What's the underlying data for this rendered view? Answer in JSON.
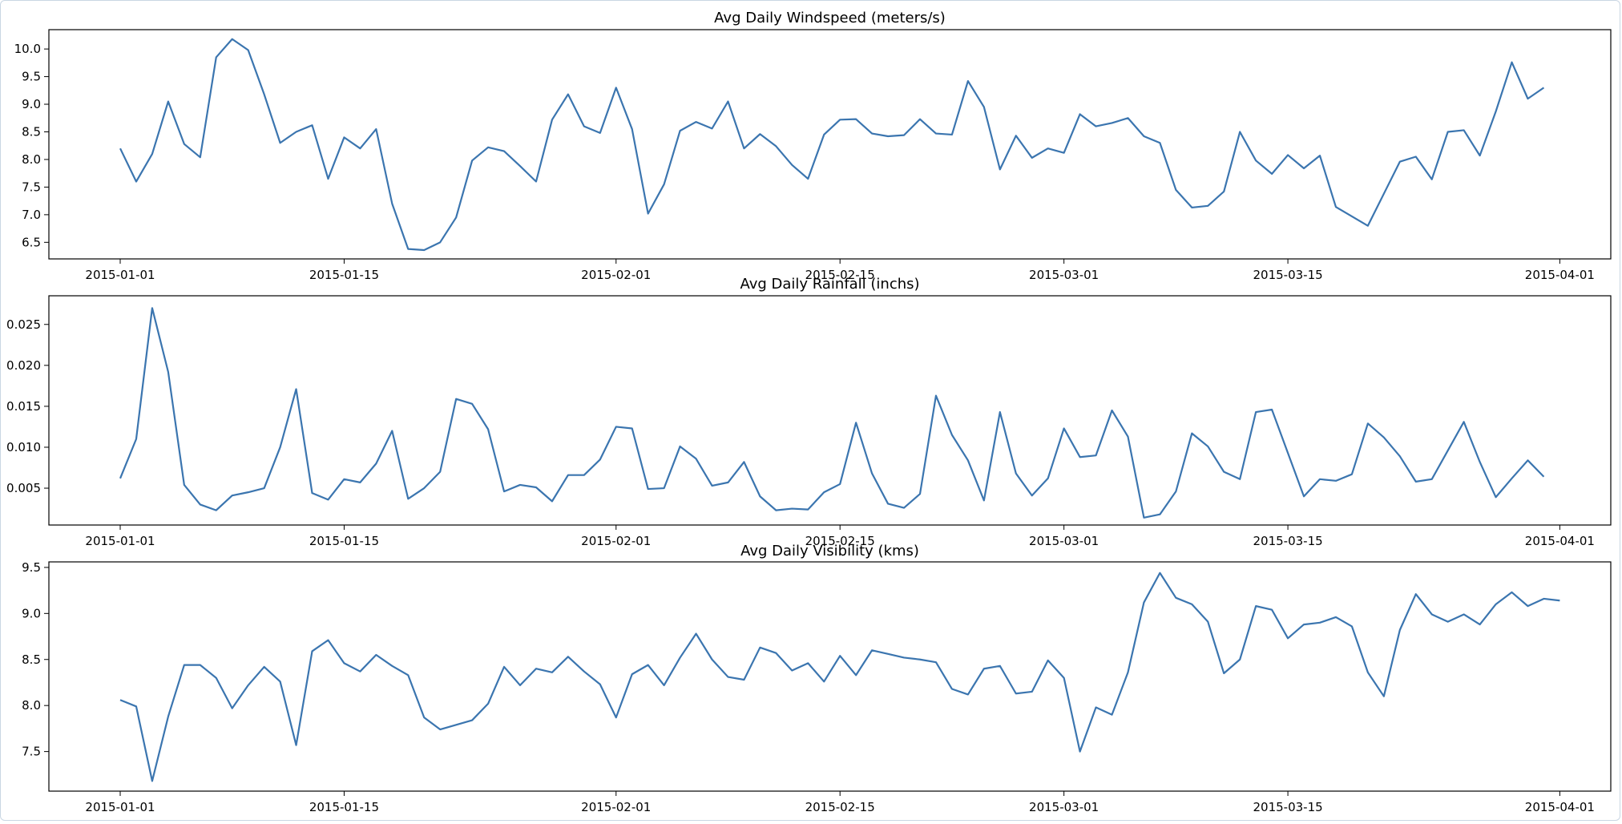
{
  "chart_data": [
    {
      "type": "line",
      "title": "Avg Daily Windspeed (meters/s)",
      "xlabel": "",
      "ylabel": "",
      "x_start": "2015-01-01",
      "x_ticks": [
        "2015-01-01",
        "2015-01-15",
        "2015-02-01",
        "2015-02-15",
        "2015-03-01",
        "2015-03-15",
        "2015-04-01"
      ],
      "y_ticks": [
        6.5,
        7.0,
        7.5,
        8.0,
        8.5,
        9.0,
        9.5,
        10.0
      ],
      "ylim": [
        6.2,
        10.35
      ],
      "series_color": "#3b75af",
      "values": [
        8.2,
        7.6,
        8.1,
        9.05,
        8.28,
        8.04,
        9.85,
        10.18,
        9.98,
        9.18,
        8.3,
        8.5,
        8.62,
        7.65,
        8.4,
        8.2,
        8.55,
        7.2,
        6.38,
        6.36,
        6.5,
        6.95,
        7.98,
        8.22,
        8.15,
        7.88,
        7.6,
        8.72,
        9.18,
        8.6,
        8.48,
        9.3,
        8.55,
        7.02,
        7.55,
        8.52,
        8.68,
        8.56,
        9.05,
        8.2,
        8.46,
        8.24,
        7.9,
        7.65,
        8.45,
        8.72,
        8.73,
        8.47,
        8.42,
        8.44,
        8.73,
        8.47,
        8.45,
        9.42,
        8.95,
        7.82,
        8.43,
        8.03,
        8.2,
        8.12,
        8.82,
        8.6,
        8.66,
        8.75,
        8.42,
        8.3,
        7.45,
        7.13,
        7.16,
        7.42,
        8.5,
        7.98,
        7.74,
        8.08,
        7.84,
        8.07,
        7.14,
        6.97,
        6.8,
        7.38,
        7.96,
        8.05,
        7.64,
        8.5,
        8.53,
        8.07,
        8.87,
        9.76,
        9.1,
        9.3
      ]
    },
    {
      "type": "line",
      "title": "Avg Daily Rainfall (inchs)",
      "xlabel": "",
      "ylabel": "",
      "x_start": "2015-01-01",
      "x_ticks": [
        "2015-01-01",
        "2015-01-15",
        "2015-02-01",
        "2015-02-15",
        "2015-03-01",
        "2015-03-15",
        "2015-04-01"
      ],
      "y_ticks": [
        0.005,
        0.01,
        0.015,
        0.02,
        0.025
      ],
      "ylim": [
        0.0005,
        0.0285
      ],
      "series_color": "#3b75af",
      "values": [
        0.0062,
        0.011,
        0.027,
        0.0192,
        0.0054,
        0.003,
        0.0023,
        0.0041,
        0.0045,
        0.005,
        0.01,
        0.0171,
        0.0044,
        0.0036,
        0.0061,
        0.0057,
        0.008,
        0.012,
        0.0037,
        0.005,
        0.007,
        0.0159,
        0.0153,
        0.0122,
        0.0046,
        0.0054,
        0.0051,
        0.0034,
        0.0066,
        0.0066,
        0.0085,
        0.0125,
        0.0123,
        0.0049,
        0.005,
        0.0101,
        0.0086,
        0.0053,
        0.0057,
        0.0082,
        0.004,
        0.0023,
        0.0025,
        0.0024,
        0.0045,
        0.0055,
        0.013,
        0.0068,
        0.0031,
        0.0026,
        0.0043,
        0.0163,
        0.0115,
        0.0084,
        0.0035,
        0.0143,
        0.0068,
        0.0041,
        0.0062,
        0.0123,
        0.0088,
        0.009,
        0.0145,
        0.0113,
        0.0014,
        0.0018,
        0.0046,
        0.0117,
        0.0101,
        0.007,
        0.0061,
        0.0143,
        0.0146,
        0.0093,
        0.004,
        0.0061,
        0.0059,
        0.0067,
        0.0129,
        0.0112,
        0.0089,
        0.0058,
        0.0061,
        0.0096,
        0.0131,
        0.0082,
        0.0039,
        0.0062,
        0.0084,
        0.0064
      ]
    },
    {
      "type": "line",
      "title": "Avg Daily Visibility (kms)",
      "xlabel": "",
      "ylabel": "",
      "x_start": "2015-01-01",
      "x_ticks": [
        "2015-01-01",
        "2015-01-15",
        "2015-02-01",
        "2015-02-15",
        "2015-03-01",
        "2015-03-15",
        "2015-04-01"
      ],
      "y_ticks": [
        7.5,
        8.0,
        8.5,
        9.0,
        9.5
      ],
      "ylim": [
        7.07,
        9.56
      ],
      "series_color": "#3b75af",
      "values": [
        8.06,
        7.99,
        7.18,
        7.88,
        8.44,
        8.44,
        8.3,
        7.97,
        8.22,
        8.42,
        8.26,
        7.57,
        8.59,
        8.71,
        8.46,
        8.37,
        8.55,
        8.43,
        8.33,
        7.87,
        7.74,
        7.79,
        7.84,
        8.02,
        8.42,
        8.22,
        8.4,
        8.36,
        8.53,
        8.37,
        8.23,
        7.87,
        8.34,
        8.44,
        8.22,
        8.52,
        8.78,
        8.5,
        8.31,
        8.28,
        8.63,
        8.57,
        8.38,
        8.46,
        8.26,
        8.54,
        8.33,
        8.6,
        8.56,
        8.52,
        8.5,
        8.47,
        8.18,
        8.12,
        8.4,
        8.43,
        8.13,
        8.15,
        8.49,
        8.3,
        7.5,
        7.98,
        7.9,
        8.36,
        9.12,
        9.44,
        9.17,
        9.1,
        8.91,
        8.35,
        8.5,
        9.08,
        9.04,
        8.73,
        8.88,
        8.9,
        8.96,
        8.86,
        8.36,
        8.1,
        8.82,
        9.21,
        8.99,
        8.91,
        8.99,
        8.88,
        9.1,
        9.23,
        9.08,
        9.16,
        9.14
      ]
    }
  ]
}
